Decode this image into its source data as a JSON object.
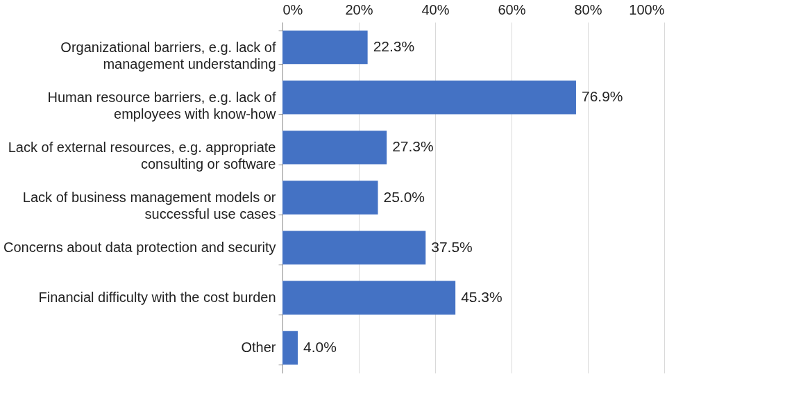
{
  "chart_data": {
    "type": "bar",
    "orientation": "horizontal",
    "categories": [
      "Organizational barriers, e.g. lack of management understanding",
      "Human resource barriers, e.g. lack of employees with know-how",
      "Lack of external resources, e.g. appropriate consulting or software",
      "Lack of business management models or successful use cases",
      "Concerns about data protection and security",
      "Financial difficulty with the cost burden",
      "Other"
    ],
    "values": [
      22.3,
      76.9,
      27.3,
      25.0,
      37.5,
      45.3,
      4.0
    ],
    "value_labels": [
      "22.3%",
      "76.9%",
      "27.3%",
      "25.0%",
      "37.5%",
      "45.3%",
      "4.0%"
    ],
    "color": "#4472c4",
    "xlim": [
      0,
      100
    ],
    "xticks": [
      {
        "value": 0,
        "label": "0%"
      },
      {
        "value": 20,
        "label": "20%"
      },
      {
        "value": 40,
        "label": "40%"
      },
      {
        "value": 60,
        "label": "60%"
      },
      {
        "value": 80,
        "label": "80%"
      },
      {
        "value": 100,
        "label": "100%"
      }
    ],
    "grid": "x"
  }
}
